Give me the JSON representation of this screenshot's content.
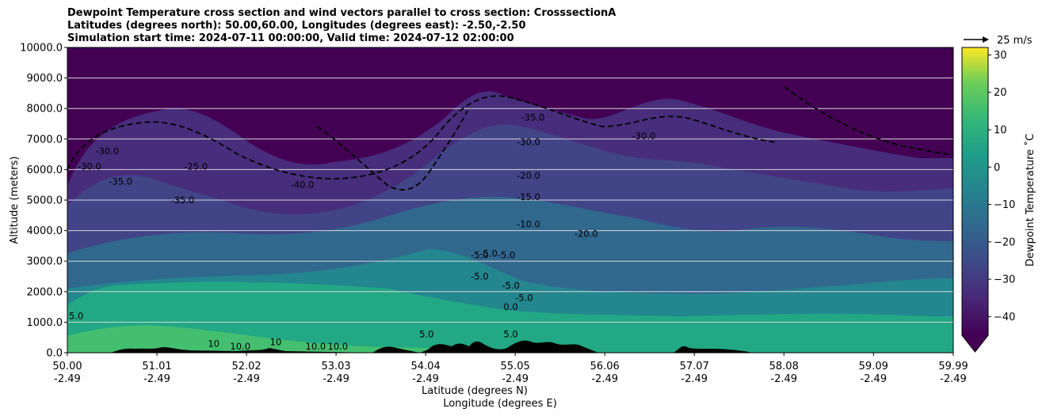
{
  "chart_data": {
    "type": "contour",
    "title_lines": [
      "Dewpoint Temperature cross section and wind vectors parallel to cross section: CrosssectionA",
      "Latitudes (degrees north): 50.00,60.00, Longitudes (degrees east): -2.50,-2.50",
      "Simulation start time: 2024-07-11 00:00:00, Valid time: 2024-07-12 02:00:00"
    ],
    "xlabel_lat": "Latitude (degrees N)",
    "xlabel_lon": "Longitude (degrees E)",
    "ylabel": "Altitude (meters)",
    "xlim": [
      50.0,
      59.99
    ],
    "ylim": [
      0,
      10000
    ],
    "x_ticks": [
      {
        "lat": "50.00",
        "lon": "-2.49",
        "value": 50.0
      },
      {
        "lat": "51.01",
        "lon": "-2.49",
        "value": 51.01
      },
      {
        "lat": "52.02",
        "lon": "-2.49",
        "value": 52.02
      },
      {
        "lat": "53.03",
        "lon": "-2.49",
        "value": 53.03
      },
      {
        "lat": "54.04",
        "lon": "-2.49",
        "value": 54.04
      },
      {
        "lat": "55.05",
        "lon": "-2.49",
        "value": 55.05
      },
      {
        "lat": "56.06",
        "lon": "-2.49",
        "value": 56.06
      },
      {
        "lat": "57.07",
        "lon": "-2.49",
        "value": 57.07
      },
      {
        "lat": "58.08",
        "lon": "-2.49",
        "value": 58.08
      },
      {
        "lat": "59.09",
        "lon": "-2.49",
        "value": 59.09
      },
      {
        "lat": "59.99",
        "lon": "-2.49",
        "value": 59.99
      }
    ],
    "y_ticks": [
      {
        "label": "0.0",
        "value": 0
      },
      {
        "label": "1000.0",
        "value": 1000
      },
      {
        "label": "2000.0",
        "value": 2000
      },
      {
        "label": "3000.0",
        "value": 3000
      },
      {
        "label": "4000.0",
        "value": 4000
      },
      {
        "label": "5000.0",
        "value": 5000
      },
      {
        "label": "6000.0",
        "value": 6000
      },
      {
        "label": "7000.0",
        "value": 7000
      },
      {
        "label": "8000.0",
        "value": 8000
      },
      {
        "label": "9000.0",
        "value": 9000
      },
      {
        "label": "10000.0",
        "value": 10000
      }
    ],
    "grid": "horizontal",
    "colorbar": {
      "label": "Dewpoint Temperature $^\\circ$C",
      "display_label": "Dewpoint Temperature ˚C",
      "range": [
        -45,
        32
      ],
      "ticks": [
        {
          "label": "30",
          "value": 30
        },
        {
          "label": "20",
          "value": 20
        },
        {
          "label": "10",
          "value": 10
        },
        {
          "label": "0",
          "value": 0
        },
        {
          "label": "−10",
          "value": -10
        },
        {
          "label": "−20",
          "value": -20
        },
        {
          "label": "−30",
          "value": -30
        },
        {
          "label": "−40",
          "value": -40
        }
      ],
      "extend": "min",
      "colormap": "viridis"
    },
    "quiver_key": {
      "label": "25 m/s",
      "speed": 25
    },
    "contour_labels": [
      {
        "text": "-30.0",
        "lat": 50.25,
        "alt": 6000
      },
      {
        "text": "-30.0",
        "lat": 50.45,
        "alt": 6500
      },
      {
        "text": "-35.0",
        "lat": 50.6,
        "alt": 5500
      },
      {
        "text": "-25.0",
        "lat": 51.45,
        "alt": 6000
      },
      {
        "text": "-35.0",
        "lat": 51.3,
        "alt": 4900
      },
      {
        "text": "-40.0",
        "lat": 52.65,
        "alt": 5400
      },
      {
        "text": "-35.0",
        "lat": 55.25,
        "alt": 7600
      },
      {
        "text": "-30.0",
        "lat": 55.2,
        "alt": 6800
      },
      {
        "text": "-20.0",
        "lat": 55.2,
        "alt": 5700
      },
      {
        "text": "-15.0",
        "lat": 55.2,
        "alt": 5000
      },
      {
        "text": "-10.0",
        "lat": 55.2,
        "alt": 4100
      },
      {
        "text": "-5.0",
        "lat": 54.65,
        "alt": 3100
      },
      {
        "text": "-5.0",
        "lat": 54.75,
        "alt": 3150
      },
      {
        "text": "-5.0",
        "lat": 54.95,
        "alt": 3100
      },
      {
        "text": "-5.0",
        "lat": 54.65,
        "alt": 2400
      },
      {
        "text": "-5.0",
        "lat": 55.0,
        "alt": 2100
      },
      {
        "text": "-5.0",
        "lat": 55.15,
        "alt": 1700
      },
      {
        "text": "0.0",
        "lat": 55.0,
        "alt": 1400
      },
      {
        "text": "-20.0",
        "lat": 55.85,
        "alt": 3800
      },
      {
        "text": "-30.0",
        "lat": 56.5,
        "alt": 7000
      },
      {
        "text": "5.0",
        "lat": 50.1,
        "alt": 1100
      },
      {
        "text": "5.0",
        "lat": 54.05,
        "alt": 500
      },
      {
        "text": "5.0",
        "lat": 55.0,
        "alt": 500
      },
      {
        "text": "10",
        "lat": 51.65,
        "alt": 200
      },
      {
        "text": "10.0",
        "lat": 51.95,
        "alt": 100
      },
      {
        "text": "10",
        "lat": 52.35,
        "alt": 250
      },
      {
        "text": "10.0",
        "lat": 52.8,
        "alt": 100
      },
      {
        "text": "10.0",
        "lat": 53.05,
        "alt": 100
      }
    ]
  }
}
